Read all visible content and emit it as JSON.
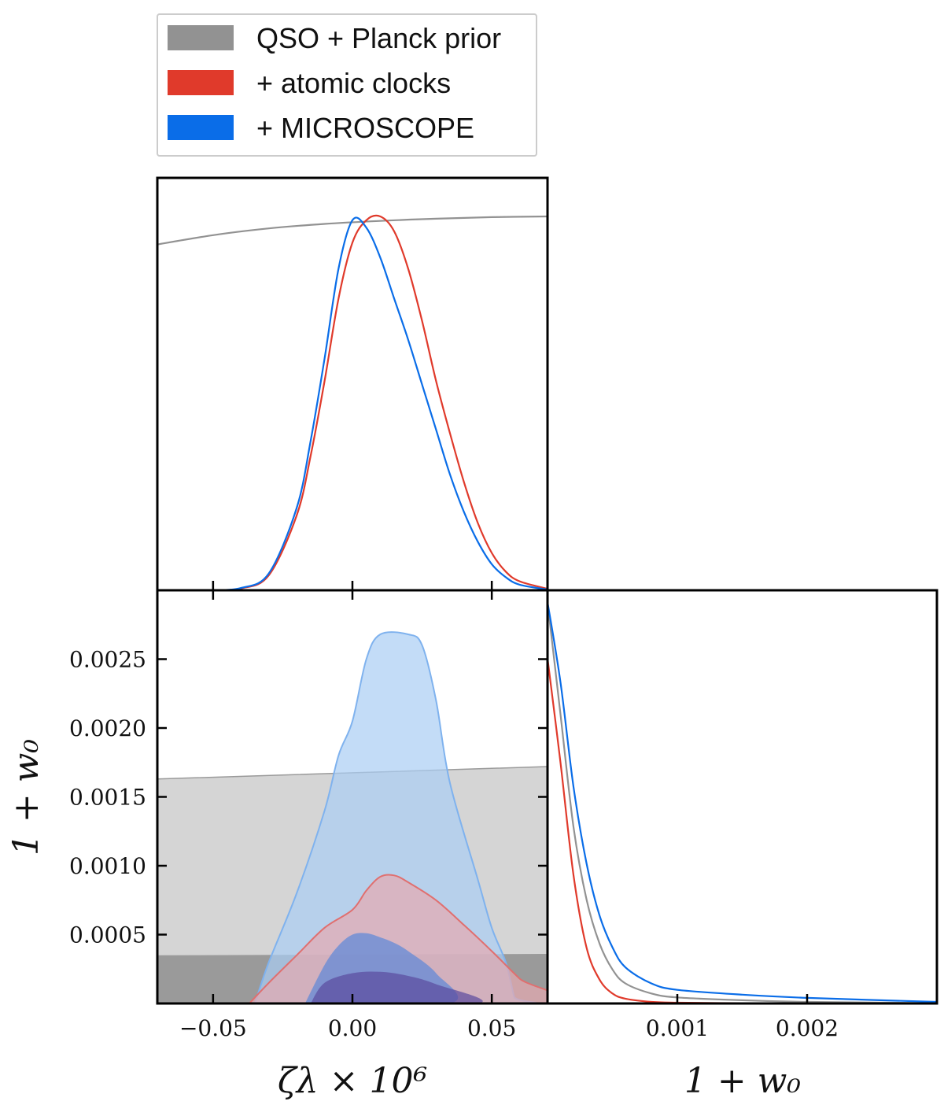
{
  "chart_data": {
    "type": "corner",
    "legend": {
      "placement": "top-left",
      "entries": [
        {
          "label": "QSO + Planck prior",
          "color": "#929292"
        },
        {
          "label": "+ atomic clocks",
          "color": "#e03a2b"
        },
        {
          "label": "+ MICROSCOPE",
          "color": "#0a6de8"
        }
      ]
    },
    "x_param": {
      "label": "ζλ × 10⁶",
      "range": [
        -0.07,
        0.07
      ],
      "ticks": [
        -0.05,
        0.0,
        0.05
      ],
      "tick_labels": [
        "−0.05",
        "0.00",
        "0.05"
      ]
    },
    "y_param": {
      "label": "1 + w₀",
      "range": [
        0.0,
        0.003
      ],
      "ticks": [
        0.0005,
        0.001,
        0.0015,
        0.002,
        0.0025
      ],
      "tick_labels": [
        "0.0005",
        "0.0010",
        "0.0015",
        "0.0020",
        "0.0025"
      ]
    },
    "marginal_x": {
      "series": [
        {
          "name": "QSO + Planck prior",
          "color": "#929292",
          "x": [
            -0.07,
            -0.05,
            -0.03,
            -0.01,
            0.01,
            0.03,
            0.05,
            0.07
          ],
          "y": [
            0.925,
            0.95,
            0.968,
            0.98,
            0.988,
            0.994,
            0.998,
            1.0
          ]
        },
        {
          "name": "+ atomic clocks",
          "color": "#e03a2b",
          "x": [
            -0.05,
            -0.04,
            -0.03,
            -0.02,
            -0.015,
            -0.01,
            -0.005,
            0.0,
            0.005,
            0.01,
            0.015,
            0.02,
            0.025,
            0.03,
            0.035,
            0.04,
            0.045,
            0.05,
            0.055,
            0.06,
            0.07
          ],
          "y": [
            0.0,
            0.005,
            0.04,
            0.2,
            0.36,
            0.56,
            0.78,
            0.93,
            0.99,
            1.0,
            0.96,
            0.86,
            0.72,
            0.56,
            0.42,
            0.29,
            0.18,
            0.1,
            0.05,
            0.024,
            0.004
          ]
        },
        {
          "name": "+ MICROSCOPE",
          "color": "#0a6de8",
          "x": [
            -0.05,
            -0.04,
            -0.03,
            -0.02,
            -0.015,
            -0.01,
            -0.005,
            0.0,
            0.005,
            0.01,
            0.015,
            0.02,
            0.025,
            0.03,
            0.035,
            0.04,
            0.045,
            0.05,
            0.055,
            0.06,
            0.07
          ],
          "y": [
            0.0,
            0.006,
            0.045,
            0.22,
            0.4,
            0.62,
            0.86,
            0.99,
            0.97,
            0.89,
            0.78,
            0.67,
            0.55,
            0.43,
            0.31,
            0.21,
            0.13,
            0.07,
            0.035,
            0.015,
            0.002
          ]
        }
      ]
    },
    "marginal_y": {
      "series": [
        {
          "name": "QSO + Planck prior",
          "color": "#929292",
          "x": [
            0.0,
            0.0001,
            0.0002,
            0.0003,
            0.0004,
            0.0005,
            0.0006,
            0.0008,
            0.001,
            0.0015,
            0.002,
            0.003
          ],
          "y": [
            1.0,
            0.72,
            0.44,
            0.26,
            0.15,
            0.085,
            0.05,
            0.025,
            0.015,
            0.008,
            0.004,
            0.001
          ]
        },
        {
          "name": "+ atomic clocks",
          "color": "#e03a2b",
          "x": [
            0.0,
            0.0001,
            0.0002,
            0.0003,
            0.0004,
            0.0005,
            0.0006,
            0.0008,
            0.001,
            0.0015,
            0.002,
            0.003
          ],
          "y": [
            0.86,
            0.6,
            0.32,
            0.14,
            0.06,
            0.025,
            0.012,
            0.004,
            0.002,
            0.0008,
            0.0004,
            0.0001
          ]
        },
        {
          "name": "+ MICROSCOPE",
          "color": "#0a6de8",
          "x": [
            0.0,
            0.0001,
            0.0002,
            0.0003,
            0.0004,
            0.0005,
            0.0006,
            0.0008,
            0.001,
            0.0015,
            0.002,
            0.003
          ],
          "y": [
            1.0,
            0.8,
            0.54,
            0.35,
            0.22,
            0.14,
            0.09,
            0.05,
            0.034,
            0.022,
            0.014,
            0.004
          ]
        }
      ]
    },
    "contours": [
      {
        "name": "QSO + Planck prior",
        "level": "95%",
        "color": "#d5d5d5",
        "x": [
          -0.07,
          0.07,
          0.07,
          -0.07
        ],
        "y": [
          0.0,
          0.0,
          0.00172,
          0.00163
        ]
      },
      {
        "name": "QSO + Planck prior",
        "level": "68%",
        "color": "#9a9a9a",
        "x": [
          -0.07,
          0.07,
          0.07,
          -0.07
        ],
        "y": [
          0.0,
          0.0,
          0.00036,
          0.00035
        ]
      },
      {
        "name": "+ MICROSCOPE",
        "level": "95%",
        "color": "#aacdf4",
        "x": [
          -0.035,
          -0.03,
          -0.02,
          -0.01,
          -0.005,
          0.0,
          0.005,
          0.01,
          0.02,
          0.025,
          0.03,
          0.035,
          0.045,
          0.05,
          0.055,
          0.058,
          0.059,
          -0.035
        ],
        "y": [
          0.0,
          0.0003,
          0.0008,
          0.0014,
          0.0018,
          0.00205,
          0.0025,
          0.00268,
          0.00268,
          0.0026,
          0.0022,
          0.0016,
          0.0009,
          0.00055,
          0.0003,
          5e-05,
          0.0,
          0.0
        ]
      },
      {
        "name": "+ atomic clocks",
        "level": "95%",
        "color": "#e5aab0",
        "x": [
          -0.037,
          -0.03,
          -0.02,
          -0.01,
          0.0,
          0.005,
          0.01,
          0.015,
          0.02,
          0.03,
          0.04,
          0.05,
          0.06,
          0.07,
          -0.037
        ],
        "y": [
          0.0,
          0.00015,
          0.00035,
          0.00055,
          0.00068,
          0.00082,
          0.00092,
          0.00093,
          0.00088,
          0.00075,
          0.00057,
          0.00038,
          0.00018,
          0.0,
          0.0
        ]
      },
      {
        "name": "+ MICROSCOPE",
        "level": "68%",
        "color": "#5b87d8",
        "x": [
          -0.017,
          -0.01,
          -0.005,
          0.0,
          0.005,
          0.01,
          0.015,
          0.02,
          0.03,
          0.035,
          -0.017
        ],
        "y": [
          0.0,
          0.00028,
          0.00042,
          0.0005,
          0.00051,
          0.00048,
          0.00044,
          0.00038,
          0.00022,
          0.0,
          0.0
        ]
      },
      {
        "name": "+ atomic clocks",
        "level": "68%",
        "color": "#5a4a9e",
        "x": [
          -0.015,
          -0.01,
          0.0,
          0.01,
          0.02,
          0.03,
          0.045,
          -0.015
        ],
        "y": [
          0.0,
          0.00015,
          0.00022,
          0.00023,
          0.0002,
          0.00014,
          0.0,
          0.0
        ]
      }
    ],
    "contour_edges": [
      {
        "name": "+ MICROSCOPE",
        "color": "#7fb2ee"
      },
      {
        "name": "+ atomic clocks",
        "color": "#e06f6f"
      }
    ]
  }
}
